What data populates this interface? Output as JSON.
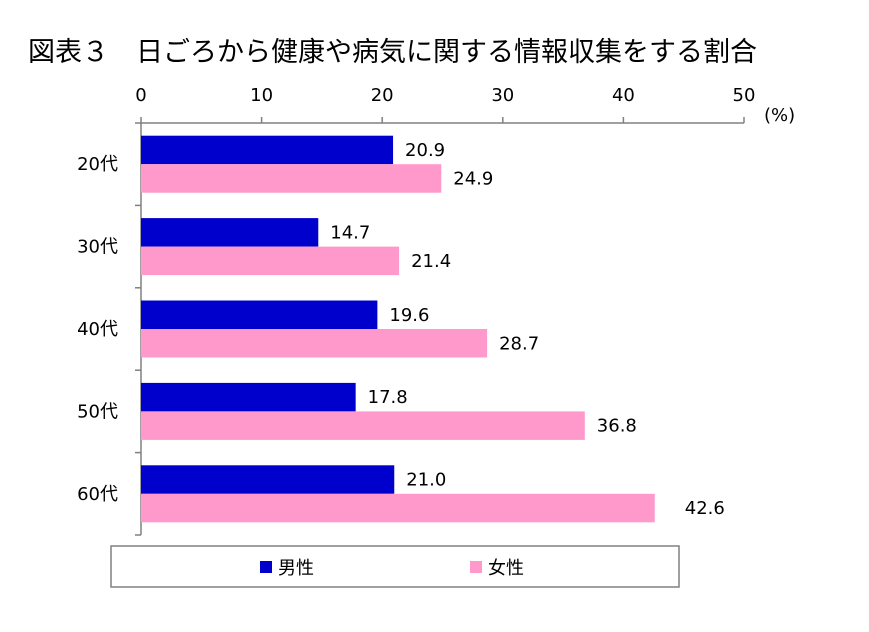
{
  "chart_data": {
    "type": "bar",
    "orientation": "horizontal",
    "title": "図表３　日ごろから健康や病気に関する情報収集をする割合",
    "unit_label": "(%)",
    "xlim": [
      0,
      50
    ],
    "ticks": [
      0,
      10,
      20,
      30,
      40,
      50
    ],
    "categories": [
      "20代",
      "30代",
      "40代",
      "50代",
      "60代"
    ],
    "series": [
      {
        "name": "男性",
        "color": "#0000cc",
        "values": [
          20.9,
          14.7,
          19.6,
          17.8,
          21.0
        ]
      },
      {
        "name": "女性",
        "color": "#ff99cc",
        "values": [
          24.9,
          21.4,
          28.7,
          36.8,
          42.6
        ]
      }
    ],
    "data_labels": [
      [
        "20.9",
        "14.7",
        "19.6",
        "17.8",
        "21.0"
      ],
      [
        "24.9",
        "21.4",
        "28.7",
        "36.8",
        "42.6"
      ]
    ],
    "grid": false,
    "legend_position": "bottom"
  }
}
